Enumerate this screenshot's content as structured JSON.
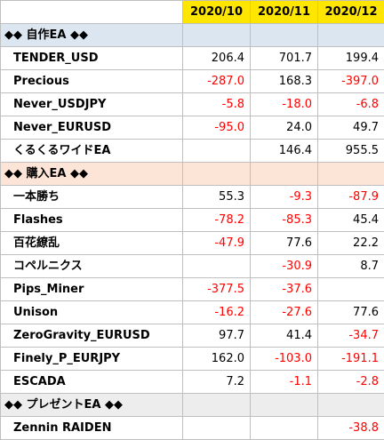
{
  "columns": [
    "2020/10",
    "2020/11",
    "2020/12"
  ],
  "colors": {
    "header_bg": "#ffe600",
    "negative": "#ff0000"
  },
  "sections": [
    {
      "title": "◆◆ 自作EA ◆◆",
      "bg": "#dce6f1",
      "rows": [
        {
          "name": "TENDER_USD",
          "values": [
            "206.4",
            "701.7",
            "199.4"
          ]
        },
        {
          "name": "Precious",
          "values": [
            "-287.0",
            "168.3",
            "-397.0"
          ]
        },
        {
          "name": "Never_USDJPY",
          "values": [
            "-5.8",
            "-18.0",
            "-6.8"
          ]
        },
        {
          "name": "Never_EURUSD",
          "values": [
            "-95.0",
            "24.0",
            "49.7"
          ]
        },
        {
          "name": "くるくるワイドEA",
          "values": [
            "",
            "146.4",
            "955.5"
          ]
        }
      ]
    },
    {
      "title": "◆◆ 購入EA ◆◆",
      "bg": "#fce4d6",
      "rows": [
        {
          "name": "一本勝ち",
          "values": [
            "55.3",
            "-9.3",
            "-87.9"
          ]
        },
        {
          "name": "Flashes",
          "values": [
            "-78.2",
            "-85.3",
            "45.4"
          ]
        },
        {
          "name": "百花繚乱",
          "values": [
            "-47.9",
            "77.6",
            "22.2"
          ]
        },
        {
          "name": "コペルニクス",
          "values": [
            "",
            "-30.9",
            "8.7"
          ]
        },
        {
          "name": "Pips_Miner",
          "values": [
            "-377.5",
            "-37.6",
            ""
          ]
        },
        {
          "name": "Unison",
          "values": [
            "-16.2",
            "-27.6",
            "77.6"
          ]
        },
        {
          "name": "ZeroGravity_EURUSD",
          "values": [
            "97.7",
            "41.4",
            "-34.7"
          ]
        },
        {
          "name": "Finely_P_EURJPY",
          "values": [
            "162.0",
            "-103.0",
            "-191.1"
          ]
        },
        {
          "name": "ESCADA",
          "values": [
            "7.2",
            "-1.1",
            "-2.8"
          ]
        }
      ]
    },
    {
      "title": "◆◆ プレゼントEA ◆◆",
      "bg": "#ededed",
      "rows": [
        {
          "name": "Zennin RAIDEN",
          "values": [
            "",
            "",
            "-38.8"
          ]
        }
      ]
    }
  ]
}
